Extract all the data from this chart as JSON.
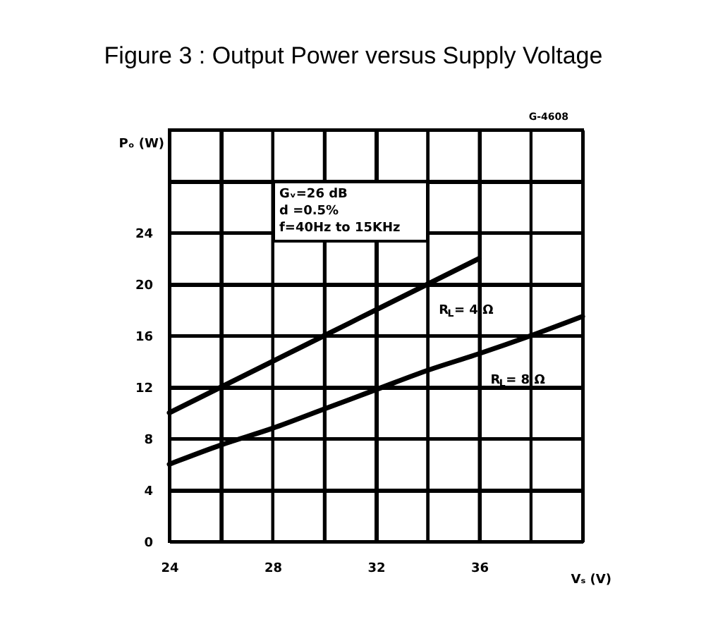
{
  "chart_data": {
    "type": "line",
    "title": "Figure 3 :    Output Power versus Supply Voltage",
    "xlabel": "Vₛ (V)",
    "ylabel": "Pₒ (W)",
    "annotations": [
      "G-4608",
      "Gᵥ=26 dB",
      "d =0.5%",
      "f=40Hz  to 15KHz"
    ],
    "series": [
      {
        "name": "R$_{L}$= 4 Ω",
        "color": "#000000",
        "x": [
          24,
          26,
          28,
          30,
          32,
          34,
          36
        ],
        "values": [
          10,
          12,
          14,
          16,
          18,
          20,
          22
        ]
      },
      {
        "name": "R$_{L}$= 8 Ω",
        "color": "#000000",
        "x": [
          24,
          26,
          28,
          30,
          32,
          34,
          36,
          38,
          40
        ],
        "values": [
          6,
          7.5,
          8.8,
          10.3,
          11.8,
          13.3,
          14.6,
          16,
          17.5
        ]
      }
    ],
    "xlim": [
      24,
      40
    ],
    "ylim": [
      0,
      32
    ],
    "xticks": [
      24,
      {
        "value": 26,
        "label": null
      },
      28,
      {
        "value": 30,
        "label": null
      },
      32,
      {
        "value": 34,
        "label": null
      },
      36,
      {
        "value": 38,
        "label": null
      },
      {
        "value": 40,
        "label": null
      }
    ],
    "yticks": [
      0,
      4,
      8,
      12,
      16,
      20,
      24,
      {
        "value": 28,
        "label": null
      },
      {
        "value": 32,
        "label": null
      }
    ],
    "grid": true,
    "legend": false,
    "marker": "none",
    "line_style": "solid"
  }
}
